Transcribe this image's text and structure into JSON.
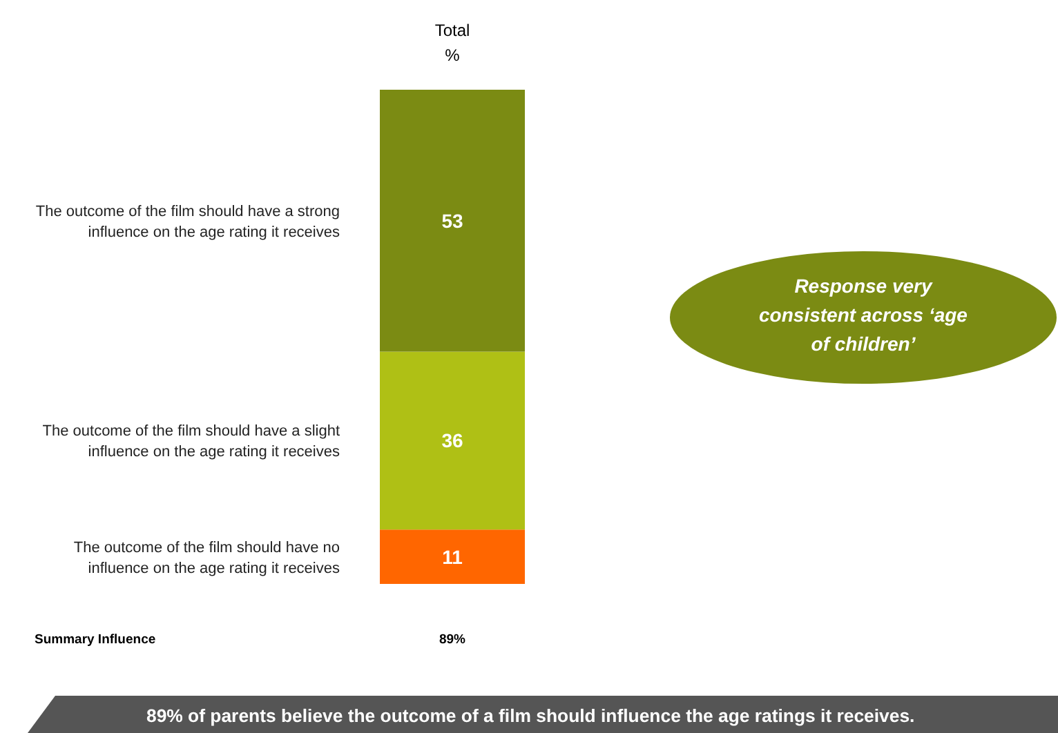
{
  "chart_data": {
    "type": "bar",
    "stacked": true,
    "title": "Total",
    "subtitle": "%",
    "categories": [
      null
    ],
    "data_labels": true,
    "legend": false,
    "series": [
      {
        "name": "The outcome of the film should have no influence on the age rating it receives",
        "color": "#ff6600",
        "values": [
          11
        ]
      },
      {
        "name": "The outcome of the film should have a slight influence on the age rating it receives",
        "color": "#afc015",
        "values": [
          36
        ]
      },
      {
        "name": "The outcome of the film should have a strong influence on the age rating it receives",
        "color": "#7b8b13",
        "values": [
          53
        ]
      }
    ],
    "annotations": [
      "Response very consistent across ‘age of children’",
      "Summary Influence",
      "89%",
      "89% of parents believe the outcome of a film should influence the age ratings it receives."
    ]
  }
}
